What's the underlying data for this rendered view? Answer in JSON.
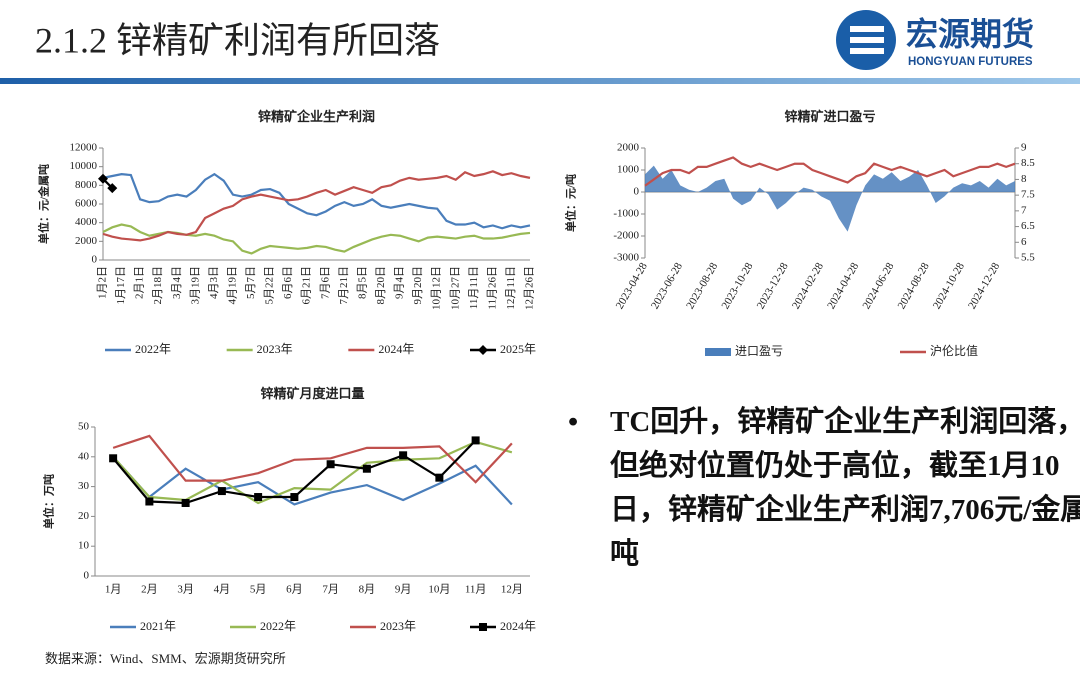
{
  "header": {
    "title": "2.1.2 锌精矿利润有所回落",
    "logo_name": "宏源期货",
    "logo_en": "HONGYUAN FUTURES"
  },
  "bullet": "TC回升，锌精矿企业生产利润回落，但绝对位置仍处于高位，截至1月10日，锌精矿企业生产利润7,706元/金属吨",
  "source": "数据来源：Wind、SMM、宏源期货研究所",
  "chart_data": [
    {
      "type": "line",
      "title": "锌精矿企业生产利润",
      "ylabel": "单位：元/金属吨",
      "categories": [
        "1月2日",
        null,
        "1月17日",
        null,
        "2月1日",
        null,
        "2月18日",
        null,
        "3月4日",
        null,
        "3月19日",
        null,
        "4月3日",
        null,
        "4月19日",
        null,
        "5月7日",
        null,
        "5月22日",
        null,
        "6月6日",
        null,
        "6月21日",
        null,
        "7月6日",
        null,
        "7月21日",
        null,
        "8月5日",
        null,
        "8月20日",
        null,
        "9月4日",
        null,
        "9月20日",
        null,
        "10月12日",
        null,
        "10月27日",
        null,
        "11月11日",
        null,
        "11月26日",
        null,
        "12月11日",
        null,
        "12月26日"
      ],
      "ylim": [
        0,
        12000
      ],
      "yticks": [
        0,
        2000,
        4000,
        6000,
        8000,
        10000,
        12000
      ],
      "series": [
        {
          "name": "2022年",
          "color": "#4a7ebb",
          "values": [
            8800,
            9000,
            9200,
            9100,
            6500,
            6200,
            6300,
            6800,
            7000,
            6800,
            7500,
            8600,
            9200,
            8500,
            7000,
            6800,
            7000,
            7500,
            7600,
            7200,
            6000,
            5500,
            5000,
            4800,
            5200,
            5800,
            6200,
            5800,
            6000,
            6500,
            5800,
            5600,
            5800,
            6000,
            5800,
            5600,
            5500,
            4200,
            3800,
            3800,
            4000,
            3500,
            3700,
            3400,
            3700,
            3500,
            3700
          ]
        },
        {
          "name": "2023年",
          "color": "#98b954",
          "values": [
            3000,
            3500,
            3800,
            3600,
            3000,
            2600,
            2800,
            3000,
            2900,
            2700,
            2600,
            2800,
            2600,
            2200,
            2000,
            1000,
            700,
            1200,
            1500,
            1400,
            1300,
            1200,
            1300,
            1500,
            1400,
            1100,
            900,
            1400,
            1800,
            2200,
            2500,
            2700,
            2600,
            2300,
            2000,
            2400,
            2500,
            2400,
            2300,
            2500,
            2600,
            2300,
            2300,
            2400,
            2600,
            2800,
            2900
          ]
        },
        {
          "name": "2024年",
          "color": "#c0504d",
          "values": [
            2800,
            2500,
            2300,
            2200,
            2100,
            2300,
            2600,
            3000,
            2800,
            2700,
            3000,
            4500,
            5000,
            5500,
            5800,
            6500,
            6800,
            7000,
            6800,
            6600,
            6400,
            6500,
            6800,
            7200,
            7500,
            7000,
            7400,
            7800,
            7500,
            7200,
            7800,
            8000,
            8500,
            8800,
            8600,
            8700,
            8800,
            9000,
            8600,
            9400,
            9000,
            9200,
            9500,
            9100,
            9300,
            9000,
            8800
          ]
        },
        {
          "name": "2025年",
          "color": "#000000",
          "marker": "diamond",
          "values": [
            8700,
            7706,
            null,
            null,
            null,
            null,
            null,
            null,
            null,
            null,
            null,
            null,
            null,
            null,
            null,
            null,
            null,
            null,
            null,
            null,
            null,
            null,
            null,
            null,
            null,
            null,
            null,
            null,
            null,
            null,
            null,
            null,
            null,
            null,
            null,
            null,
            null,
            null,
            null,
            null,
            null,
            null,
            null,
            null,
            null,
            null,
            null
          ]
        }
      ]
    },
    {
      "type": "line",
      "title": "锌精矿进口盈亏",
      "ylabel": "单位：元/吨",
      "categories": [
        "2023-04-28",
        null,
        null,
        null,
        "2023-06-28",
        null,
        null,
        null,
        "2023-08-28",
        null,
        null,
        null,
        "2023-10-28",
        null,
        null,
        null,
        "2023-12-28",
        null,
        null,
        null,
        "2024-02-28",
        null,
        null,
        null,
        "2024-04-28",
        null,
        null,
        null,
        "2024-06-28",
        null,
        null,
        null,
        "2024-08-28",
        null,
        null,
        null,
        "2024-10-28",
        null,
        null,
        null,
        "2024-12-28",
        null,
        null
      ],
      "ylim": [
        -3000,
        2000
      ],
      "yticks": [
        -3000,
        -2000,
        -1000,
        0,
        1000,
        2000
      ],
      "y2lim": [
        5.5,
        9
      ],
      "y2ticks": [
        5.5,
        6,
        6.5,
        7,
        7.5,
        8,
        8.5,
        9
      ],
      "series": [
        {
          "name": "进口盈亏",
          "color": "#4a7ebb",
          "type": "area",
          "values": [
            800,
            1200,
            600,
            1000,
            300,
            100,
            0,
            200,
            500,
            600,
            -300,
            -600,
            -400,
            200,
            -100,
            -800,
            -500,
            -100,
            200,
            100,
            -200,
            -400,
            -1200,
            -1800,
            -600,
            300,
            800,
            600,
            900,
            500,
            700,
            1000,
            300,
            -500,
            -200,
            200,
            400,
            300,
            500,
            200,
            600,
            300,
            500
          ]
        },
        {
          "name": "沪伦比值",
          "color": "#c0504d",
          "axis": "y2",
          "values": [
            7.8,
            8.0,
            8.2,
            8.3,
            8.3,
            8.2,
            8.4,
            8.4,
            8.5,
            8.6,
            8.7,
            8.5,
            8.4,
            8.5,
            8.4,
            8.3,
            8.4,
            8.5,
            8.5,
            8.3,
            8.2,
            8.1,
            8.0,
            7.9,
            8.1,
            8.2,
            8.5,
            8.4,
            8.3,
            8.4,
            8.3,
            8.2,
            8.1,
            8.2,
            8.3,
            8.1,
            8.2,
            8.3,
            8.4,
            8.4,
            8.5,
            8.4,
            8.5
          ]
        }
      ]
    },
    {
      "type": "line",
      "title": "锌精矿月度进口量",
      "ylabel": "单位：万吨",
      "categories": [
        "1月",
        "2月",
        "3月",
        "4月",
        "5月",
        "6月",
        "7月",
        "8月",
        "9月",
        "10月",
        "11月",
        "12月"
      ],
      "ylim": [
        0,
        50
      ],
      "yticks": [
        0,
        10,
        20,
        30,
        40,
        50
      ],
      "series": [
        {
          "name": "2021年",
          "color": "#4a7ebb",
          "values": [
            40,
            26.5,
            36,
            29,
            31.5,
            24,
            28,
            30.5,
            25.5,
            31,
            37,
            24
          ]
        },
        {
          "name": "2022年",
          "color": "#98b954",
          "values": [
            40,
            26.5,
            25.5,
            32,
            24.5,
            29.5,
            29,
            38,
            39,
            39.5,
            45,
            41.5
          ]
        },
        {
          "name": "2023年",
          "color": "#c0504d",
          "values": [
            43,
            47,
            32,
            32,
            34.5,
            39,
            39.5,
            43,
            43,
            43.5,
            31.5,
            44.5
          ]
        },
        {
          "name": "2024年",
          "color": "#000000",
          "marker": "square",
          "values": [
            39.5,
            25,
            24.5,
            28.5,
            26.5,
            26.5,
            37.5,
            36,
            40.5,
            33,
            45.5,
            null
          ]
        }
      ]
    }
  ]
}
